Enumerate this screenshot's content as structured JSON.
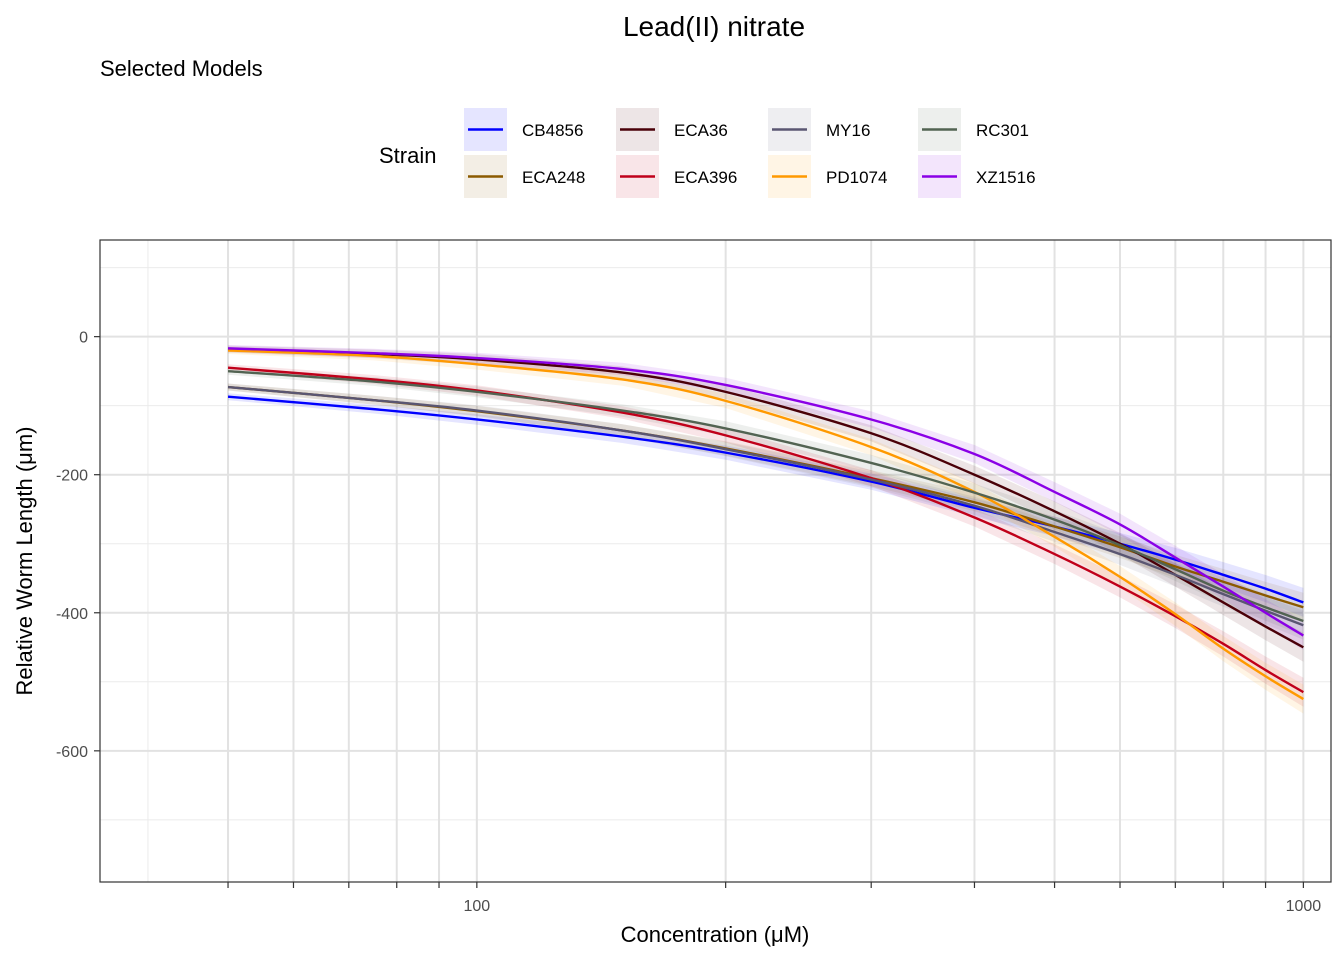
{
  "chart_data": {
    "type": "line",
    "title": "Lead(II) nitrate",
    "subtitle": "Selected Models",
    "xlabel": "Concentration (μM)",
    "ylabel": "Relative Worm Length (μm)",
    "x_scale": "log10",
    "xlim": [
      35,
      1080
    ],
    "ylim": [
      -790,
      140
    ],
    "x_ticks": [
      100,
      1000
    ],
    "x_tick_labels": [
      "100",
      "1000"
    ],
    "y_ticks": [
      0,
      -200,
      -400,
      -600
    ],
    "y_tick_labels": [
      "0",
      "-200",
      "-400",
      "-600"
    ],
    "legend": {
      "title": "Strain",
      "position": "top"
    },
    "x": [
      50,
      75,
      100,
      150,
      200,
      300,
      400,
      500,
      600,
      700,
      800,
      900,
      1000
    ],
    "series": [
      {
        "name": "CB4856",
        "color": "#0000ff",
        "values": [
          -87,
          -105,
          -120,
          -145,
          -168,
          -210,
          -248,
          -275,
          -300,
          -323,
          -345,
          -365,
          -385
        ]
      },
      {
        "name": "ECA248",
        "color": "#8b5a00",
        "values": [
          -73,
          -92,
          -108,
          -136,
          -162,
          -205,
          -240,
          -275,
          -305,
          -333,
          -355,
          -375,
          -392
        ]
      },
      {
        "name": "ECA36",
        "color": "#4a0008",
        "values": [
          -18,
          -25,
          -33,
          -52,
          -80,
          -140,
          -200,
          -253,
          -300,
          -345,
          -385,
          -420,
          -450
        ]
      },
      {
        "name": "ECA396",
        "color": "#c0001a",
        "values": [
          -45,
          -62,
          -78,
          -110,
          -143,
          -205,
          -262,
          -315,
          -362,
          -405,
          -445,
          -483,
          -515
        ]
      },
      {
        "name": "MY16",
        "color": "#5a5672",
        "values": [
          -73,
          -92,
          -107,
          -136,
          -163,
          -207,
          -245,
          -283,
          -315,
          -345,
          -373,
          -397,
          -418
        ]
      },
      {
        "name": "PD1074",
        "color": "#ff9900",
        "values": [
          -20,
          -28,
          -40,
          -62,
          -93,
          -160,
          -225,
          -290,
          -348,
          -402,
          -452,
          -492,
          -525
        ]
      },
      {
        "name": "RC301",
        "color": "#526352",
        "values": [
          -50,
          -65,
          -80,
          -107,
          -133,
          -183,
          -226,
          -265,
          -302,
          -337,
          -368,
          -392,
          -412
        ]
      },
      {
        "name": "XZ1516",
        "color": "#8a00e6",
        "values": [
          -17,
          -24,
          -31,
          -47,
          -70,
          -120,
          -170,
          -225,
          -272,
          -320,
          -362,
          -400,
          -433
        ]
      }
    ]
  }
}
